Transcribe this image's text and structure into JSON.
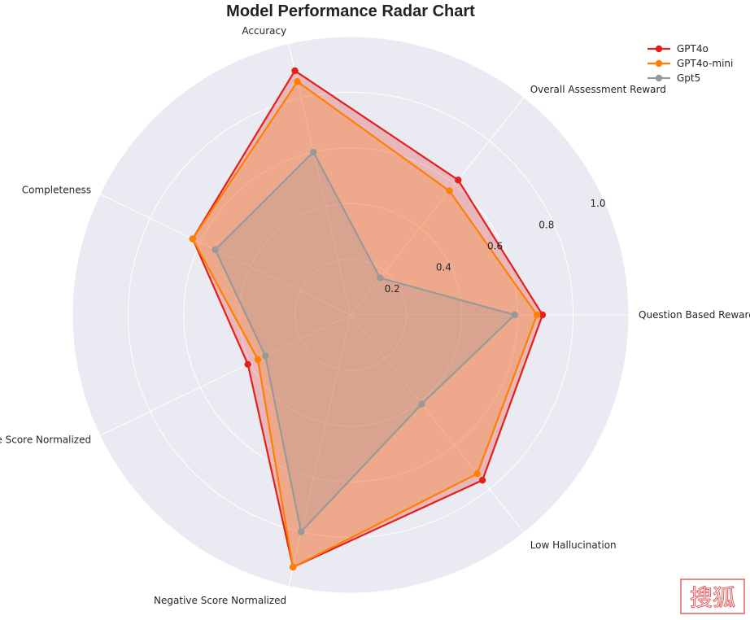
{
  "chart_data": {
    "type": "radar",
    "title": "Model Performance Radar Chart",
    "categories": [
      "Question Based Reward",
      "Overall Assessment Reward",
      "Accuracy",
      "Completeness",
      "Positive Score Normalized",
      "Negative Score Normalized",
      "Low Hallucination"
    ],
    "radial_ticks": [
      "0.2",
      "0.4",
      "0.6",
      "0.8",
      "1.0"
    ],
    "radial_tick_values": [
      0.2,
      0.4,
      0.6,
      0.8,
      1.0
    ],
    "rlim": [
      0,
      1.0
    ],
    "grid": true,
    "legend_position": "top-right",
    "series": [
      {
        "name": "GPT4o",
        "color": "#e3211c",
        "values": [
          0.69,
          0.62,
          0.9,
          0.63,
          0.41,
          0.93,
          0.76
        ]
      },
      {
        "name": "GPT4o-mini",
        "color": "#ff7f00",
        "values": [
          0.67,
          0.57,
          0.86,
          0.63,
          0.37,
          0.93,
          0.73
        ]
      },
      {
        "name": "Gpt5",
        "color": "#999999",
        "values": [
          0.59,
          0.17,
          0.6,
          0.54,
          0.34,
          0.8,
          0.41
        ]
      }
    ]
  },
  "colors": {
    "background": "#ffffff",
    "plot_area": "#eaeaf2",
    "grid": "#ffffff",
    "watermark": "#e06060"
  },
  "watermark": {
    "text": "搜狐"
  }
}
